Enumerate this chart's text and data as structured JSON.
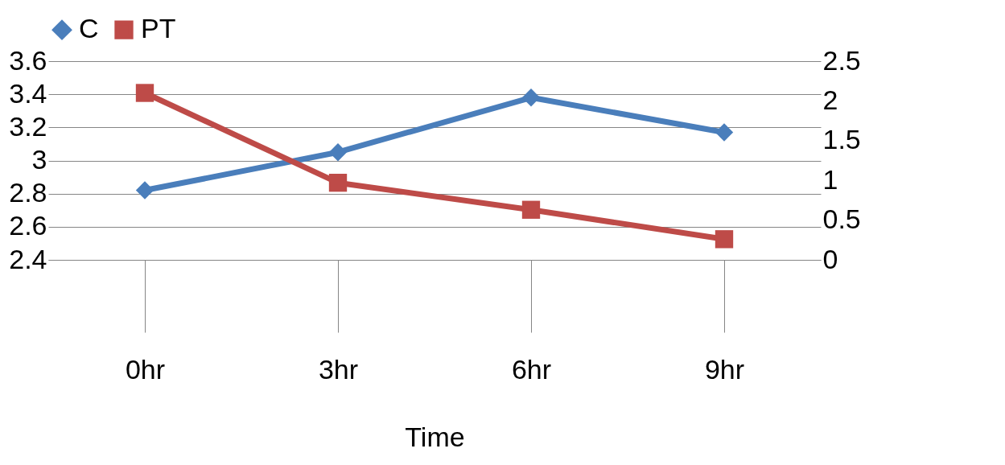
{
  "chart_data": {
    "type": "line",
    "xlabel": "Time",
    "categories": [
      "0hr",
      "3hr",
      "6hr",
      "9hr"
    ],
    "series": [
      {
        "name": "C",
        "color": "#4a7ebb",
        "marker": "diamond",
        "values": [
          2.82,
          3.05,
          3.38,
          3.17
        ]
      },
      {
        "name": "PT",
        "color": "#be4b48",
        "marker": "square",
        "axis": "y2",
        "values": [
          2.1,
          0.97,
          0.63,
          0.26
        ]
      }
    ],
    "ylim": [
      2.4,
      3.6
    ],
    "yticks": [
      2.4,
      2.6,
      2.8,
      3,
      3.2,
      3.4,
      3.6
    ],
    "y2lim": [
      0,
      2.5
    ],
    "y2ticks": [
      0,
      0.5,
      1,
      1.5,
      2,
      2.5
    ],
    "grid": "y",
    "legend": "top"
  }
}
